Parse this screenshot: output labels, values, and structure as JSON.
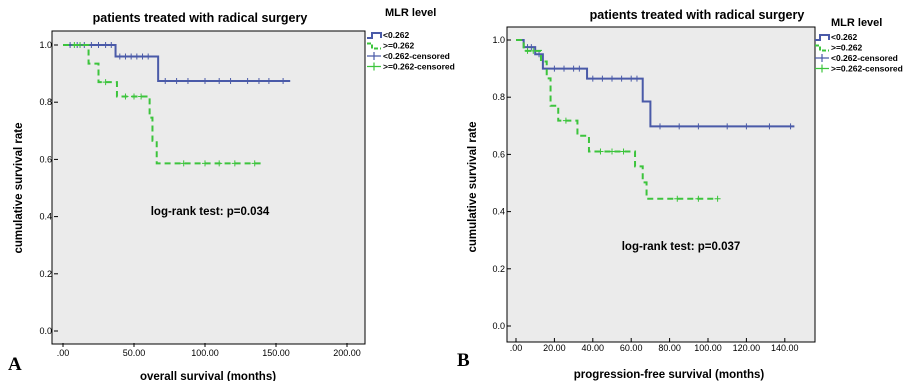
{
  "colors": {
    "low": "#4a5aa8",
    "high": "#3cc43c",
    "plot_bg": "#ebebeb",
    "frame": "#000000"
  },
  "panels": [
    {
      "letter": "A",
      "annotation": "log-rank test: p=0.034"
    },
    {
      "letter": "B",
      "annotation": "log-rank test: p=0.037"
    }
  ],
  "chart_data": [
    {
      "type": "line",
      "subtype": "kaplan-meier step plot",
      "title": "patients treated with radical surgery",
      "xlabel": "overall survival (months)",
      "ylabel": "cumulative survival rate",
      "xlim": [
        0,
        200
      ],
      "ylim": [
        0,
        1.0
      ],
      "x_ticks": [
        ".00",
        "50.00",
        "100.00",
        "150.00",
        "200.00"
      ],
      "y_ticks": [
        "0.0",
        "0.2",
        "0.4",
        "0.6",
        "0.8",
        "1.0"
      ],
      "legend_title": "MLR level",
      "legend_position": "top-right outside",
      "legend": [
        "<0.262",
        ">=0.262",
        "<0.262-censored",
        ">=0.262-censored"
      ],
      "series": [
        {
          "name": "<0.262",
          "color": "#4a5aa8",
          "style": "solid",
          "steps": [
            [
              0,
              1.0
            ],
            [
              37,
              0.96
            ],
            [
              67,
              0.874
            ],
            [
              160,
              0.874
            ]
          ],
          "censored": [
            [
              5,
              1.0
            ],
            [
              10,
              1.0
            ],
            [
              15,
              1.0
            ],
            [
              20,
              1.0
            ],
            [
              25,
              1.0
            ],
            [
              30,
              1.0
            ],
            [
              34,
              1.0
            ],
            [
              40,
              0.96
            ],
            [
              44,
              0.96
            ],
            [
              48,
              0.96
            ],
            [
              52,
              0.96
            ],
            [
              56,
              0.96
            ],
            [
              60,
              0.96
            ],
            [
              72,
              0.874
            ],
            [
              80,
              0.874
            ],
            [
              88,
              0.874
            ],
            [
              100,
              0.874
            ],
            [
              110,
              0.874
            ],
            [
              118,
              0.874
            ],
            [
              130,
              0.874
            ],
            [
              138,
              0.874
            ],
            [
              145,
              0.874
            ],
            [
              155,
              0.874
            ]
          ]
        },
        {
          "name": ">=0.262",
          "color": "#3cc43c",
          "style": "dashed",
          "steps": [
            [
              0,
              1.0
            ],
            [
              18,
              0.935
            ],
            [
              25,
              0.87
            ],
            [
              38,
              0.82
            ],
            [
              61,
              0.746
            ],
            [
              63,
              0.665
            ],
            [
              66,
              0.586
            ],
            [
              141,
              0.586
            ]
          ],
          "censored": [
            [
              8,
              1.0
            ],
            [
              12,
              1.0
            ],
            [
              30,
              0.87
            ],
            [
              44,
              0.82
            ],
            [
              50,
              0.82
            ],
            [
              55,
              0.82
            ],
            [
              85,
              0.586
            ],
            [
              100,
              0.586
            ],
            [
              110,
              0.586
            ],
            [
              121,
              0.586
            ],
            [
              135,
              0.586
            ]
          ]
        }
      ]
    },
    {
      "type": "line",
      "subtype": "kaplan-meier step plot",
      "title": "patients treated with radical surgery",
      "xlabel": "progression-free survival (months)",
      "ylabel": "cumulative survival rate",
      "xlim": [
        0,
        150
      ],
      "ylim": [
        0,
        1.0
      ],
      "x_ticks": [
        ".00",
        "20.00",
        "40.00",
        "60.00",
        "80.00",
        "100.00",
        "120.00",
        "140.00"
      ],
      "y_ticks": [
        "0.0",
        "0.2",
        "0.4",
        "0.6",
        "0.8",
        "1.0"
      ],
      "legend_title": "MLR level",
      "legend_position": "top-right outside",
      "legend": [
        "<0.262",
        ">=0.262",
        "<0.262-censored",
        ">=0.262-censored"
      ],
      "series": [
        {
          "name": "<0.262",
          "color": "#4a5aa8",
          "style": "solid",
          "steps": [
            [
              0,
              1.0
            ],
            [
              4,
              0.975
            ],
            [
              10,
              0.95
            ],
            [
              14,
              0.9
            ],
            [
              37,
              0.865
            ],
            [
              66,
              0.785
            ],
            [
              70,
              0.698
            ],
            [
              145,
              0.698
            ]
          ],
          "censored": [
            [
              6,
              0.975
            ],
            [
              8,
              0.975
            ],
            [
              12,
              0.95
            ],
            [
              20,
              0.9
            ],
            [
              25,
              0.9
            ],
            [
              30,
              0.9
            ],
            [
              33,
              0.9
            ],
            [
              40,
              0.865
            ],
            [
              45,
              0.865
            ],
            [
              50,
              0.865
            ],
            [
              55,
              0.865
            ],
            [
              60,
              0.865
            ],
            [
              63,
              0.865
            ],
            [
              75,
              0.698
            ],
            [
              85,
              0.698
            ],
            [
              95,
              0.698
            ],
            [
              110,
              0.698
            ],
            [
              120,
              0.698
            ],
            [
              132,
              0.698
            ],
            [
              143,
              0.698
            ]
          ]
        },
        {
          "name": ">=0.262",
          "color": "#3cc43c",
          "style": "dashed",
          "steps": [
            [
              0,
              1.0
            ],
            [
              4,
              0.962
            ],
            [
              13,
              0.925
            ],
            [
              16,
              0.866
            ],
            [
              18,
              0.77
            ],
            [
              22,
              0.718
            ],
            [
              32,
              0.665
            ],
            [
              38,
              0.61
            ],
            [
              62,
              0.558
            ],
            [
              66,
              0.502
            ],
            [
              68,
              0.445
            ],
            [
              105,
              0.445
            ]
          ],
          "censored": [
            [
              6,
              0.962
            ],
            [
              9,
              0.962
            ],
            [
              26,
              0.718
            ],
            [
              44,
              0.61
            ],
            [
              50,
              0.61
            ],
            [
              56,
              0.61
            ],
            [
              84,
              0.445
            ],
            [
              95,
              0.445
            ],
            [
              105,
              0.445
            ]
          ]
        }
      ]
    }
  ]
}
